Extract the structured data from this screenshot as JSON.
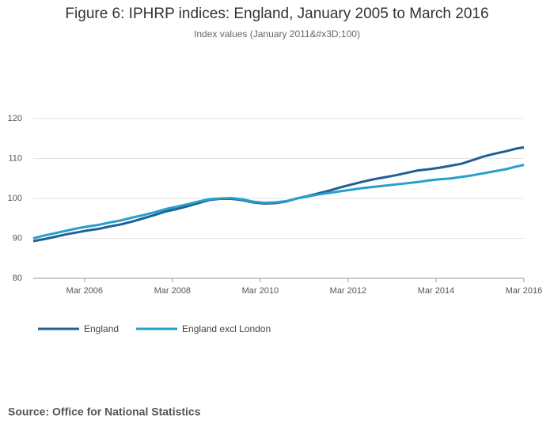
{
  "chart_data": {
    "type": "line",
    "title": "Figure 6: IPHRP indices: England, January 2005 to March 2016",
    "subtitle": "Index values (January 2011&#x3D;100)",
    "source": "Source: Office for National Statistics",
    "x": [
      "Jan 2005",
      "Apr 2005",
      "Jul 2005",
      "Oct 2005",
      "Jan 2006",
      "Apr 2006",
      "Jul 2006",
      "Oct 2006",
      "Jan 2007",
      "Apr 2007",
      "Jul 2007",
      "Oct 2007",
      "Jan 2008",
      "Apr 2008",
      "Jul 2008",
      "Oct 2008",
      "Jan 2009",
      "Apr 2009",
      "Jul 2009",
      "Oct 2009",
      "Jan 2010",
      "Apr 2010",
      "Jul 2010",
      "Oct 2010",
      "Jan 2011",
      "Apr 2011",
      "Jul 2011",
      "Oct 2011",
      "Jan 2012",
      "Apr 2012",
      "Jul 2012",
      "Oct 2012",
      "Jan 2013",
      "Apr 2013",
      "Jul 2013",
      "Oct 2013",
      "Jan 2014",
      "Apr 2014",
      "Jul 2014",
      "Oct 2014",
      "Jan 2015",
      "Apr 2015",
      "Jul 2015",
      "Oct 2015",
      "Jan 2016",
      "Mar 2016"
    ],
    "series": [
      {
        "name": "England",
        "color": "#206095",
        "values": [
          89.3,
          89.8,
          90.4,
          91.0,
          91.5,
          92.0,
          92.4,
          93.0,
          93.5,
          94.2,
          95.0,
          95.8,
          96.7,
          97.3,
          98.0,
          98.8,
          99.6,
          99.9,
          99.9,
          99.6,
          99.0,
          98.7,
          98.8,
          99.2,
          100.0,
          100.6,
          101.3,
          102.0,
          102.8,
          103.5,
          104.2,
          104.8,
          105.3,
          105.8,
          106.4,
          107.0,
          107.3,
          107.7,
          108.2,
          108.7,
          109.6,
          110.5,
          111.2,
          111.8,
          112.5,
          112.8
        ]
      },
      {
        "name": "England excl London",
        "color": "#27a0cc",
        "values": [
          90.0,
          90.7,
          91.3,
          91.9,
          92.5,
          93.0,
          93.4,
          94.0,
          94.5,
          95.2,
          95.8,
          96.5,
          97.3,
          97.9,
          98.5,
          99.2,
          99.8,
          100.0,
          100.1,
          99.8,
          99.2,
          98.9,
          99.0,
          99.3,
          100.0,
          100.5,
          101.0,
          101.4,
          101.8,
          102.2,
          102.6,
          102.9,
          103.2,
          103.5,
          103.8,
          104.1,
          104.5,
          104.8,
          105.0,
          105.4,
          105.8,
          106.3,
          106.8,
          107.3,
          108.0,
          108.4
        ]
      }
    ],
    "xlim": [
      "Jan 2005",
      "Mar 2016"
    ],
    "xticks": [
      "Mar 2006",
      "Mar 2008",
      "Mar 2010",
      "Mar 2012",
      "Mar 2014",
      "Mar 2016"
    ],
    "ylim": [
      80,
      120
    ],
    "yticks": [
      80,
      90,
      100,
      110,
      120
    ],
    "grid": true
  }
}
